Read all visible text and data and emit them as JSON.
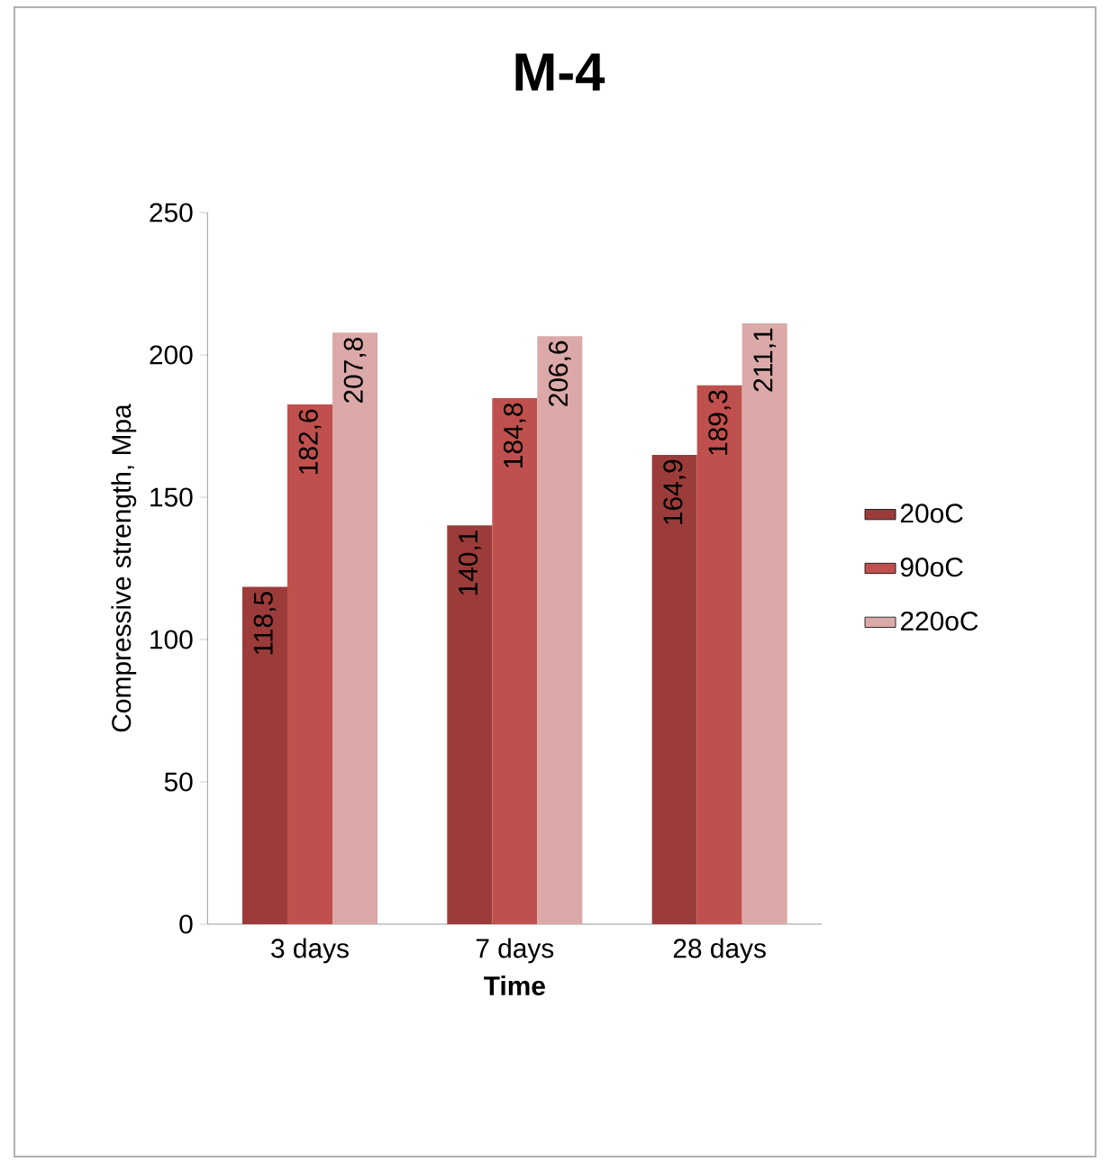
{
  "chart_data": {
    "type": "bar",
    "title": "M-4",
    "xlabel": "Time",
    "ylabel": "Compressive strength, Mpa",
    "categories": [
      "3 days",
      "7 days",
      "28 days"
    ],
    "series": [
      {
        "name": "20oC",
        "color": "#9b3c3a",
        "values": [
          118.5,
          140.1,
          164.9
        ],
        "value_labels": [
          "118,5",
          "140,1",
          "164,9"
        ]
      },
      {
        "name": "90oC",
        "color": "#c0504d",
        "values": [
          182.6,
          184.8,
          189.3
        ],
        "value_labels": [
          "182,6",
          "184,8",
          "189,3"
        ]
      },
      {
        "name": "220oC",
        "color": "#dba9a8",
        "values": [
          207.8,
          206.6,
          211.1
        ],
        "value_labels": [
          "207,8",
          "206,6",
          "211,1"
        ]
      }
    ],
    "ylim": [
      0,
      250
    ],
    "yticks": [
      0,
      50,
      100,
      150,
      200,
      250
    ],
    "legend": "right"
  }
}
